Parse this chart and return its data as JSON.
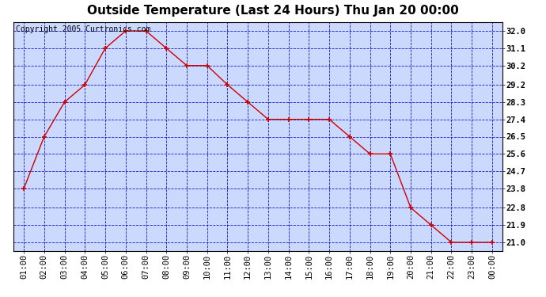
{
  "title": "Outside Temperature (Last 24 Hours) Thu Jan 20 00:00",
  "x_labels": [
    "01:00",
    "02:00",
    "03:00",
    "04:00",
    "05:00",
    "06:00",
    "07:00",
    "08:00",
    "09:00",
    "10:00",
    "11:00",
    "12:00",
    "13:00",
    "14:00",
    "15:00",
    "16:00",
    "17:00",
    "18:00",
    "19:00",
    "20:00",
    "21:00",
    "22:00",
    "23:00",
    "00:00"
  ],
  "y_values": [
    23.8,
    26.5,
    28.3,
    29.2,
    31.1,
    32.0,
    32.0,
    31.1,
    30.2,
    30.2,
    29.2,
    28.3,
    27.4,
    27.4,
    27.4,
    27.4,
    26.5,
    25.6,
    25.6,
    22.8,
    21.9,
    21.0,
    21.0,
    21.0
  ],
  "y_ticks": [
    21.0,
    21.9,
    22.8,
    23.8,
    24.7,
    25.6,
    26.5,
    27.4,
    28.3,
    29.2,
    30.2,
    31.1,
    32.0
  ],
  "ylim_min": 20.55,
  "ylim_max": 32.45,
  "line_color": "#cc0000",
  "marker": "+",
  "marker_color": "#cc0000",
  "bg_color": "#ccd9ff",
  "outer_bg_color": "#ffffff",
  "grid_color": "#0000cc",
  "grid_style": "--",
  "copyright_text": "Copyright 2005 Curtronics.com",
  "title_fontsize": 11,
  "tick_fontsize": 7.5,
  "copyright_fontsize": 7.0
}
